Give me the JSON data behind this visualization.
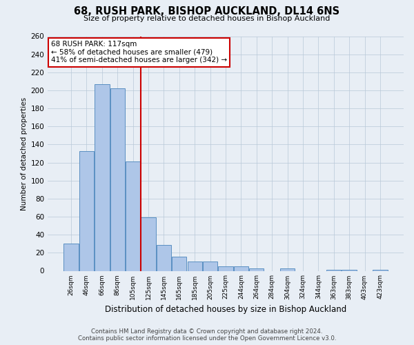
{
  "title": "68, RUSH PARK, BISHOP AUCKLAND, DL14 6NS",
  "subtitle": "Size of property relative to detached houses in Bishop Auckland",
  "xlabel": "Distribution of detached houses by size in Bishop Auckland",
  "ylabel": "Number of detached properties",
  "bar_labels": [
    "26sqm",
    "46sqm",
    "66sqm",
    "86sqm",
    "105sqm",
    "125sqm",
    "145sqm",
    "165sqm",
    "185sqm",
    "205sqm",
    "225sqm",
    "244sqm",
    "264sqm",
    "284sqm",
    "304sqm",
    "324sqm",
    "344sqm",
    "363sqm",
    "383sqm",
    "403sqm",
    "423sqm"
  ],
  "bar_values": [
    30,
    133,
    207,
    202,
    121,
    59,
    29,
    16,
    10,
    10,
    5,
    5,
    3,
    0,
    3,
    0,
    0,
    1,
    1,
    0,
    1
  ],
  "bar_color": "#aec6e8",
  "bar_edge_color": "#5a8fc2",
  "vline_x": 4.5,
  "ylim": [
    0,
    260
  ],
  "yticks": [
    0,
    20,
    40,
    60,
    80,
    100,
    120,
    140,
    160,
    180,
    200,
    220,
    240,
    260
  ],
  "annotation_box_text": "68 RUSH PARK: 117sqm\n← 58% of detached houses are smaller (479)\n41% of semi-detached houses are larger (342) →",
  "annotation_box_color": "#ffffff",
  "annotation_box_edge_color": "#cc0000",
  "vline_color": "#cc0000",
  "bg_color": "#e8eef5",
  "footnote1": "Contains HM Land Registry data © Crown copyright and database right 2024.",
  "footnote2": "Contains public sector information licensed under the Open Government Licence v3.0."
}
